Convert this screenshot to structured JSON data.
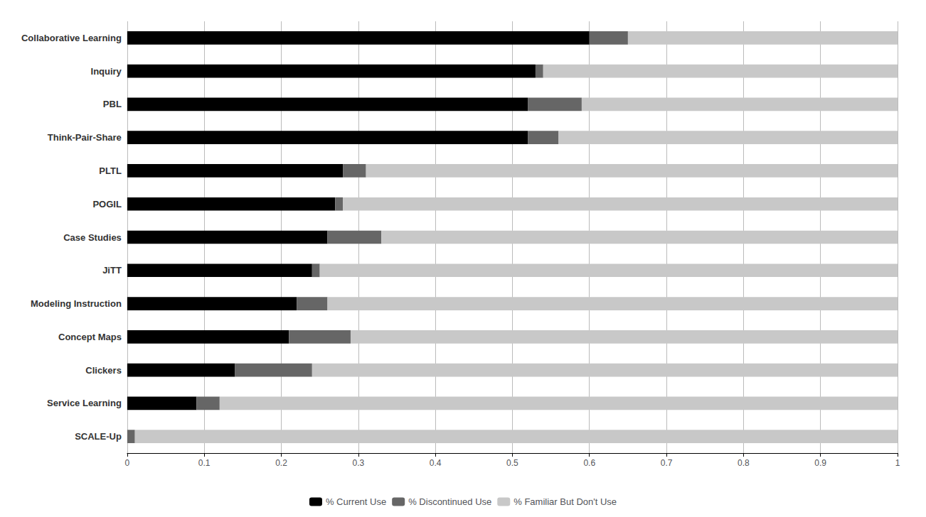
{
  "chart_data": {
    "type": "bar",
    "orientation": "horizontal",
    "stacked": true,
    "categories": [
      "Collaborative Learning",
      "Inquiry",
      "PBL",
      "Think-Pair-Share",
      "PLTL",
      "POGIL",
      "Case Studies",
      "JiTT",
      "Modeling Instruction",
      "Concept Maps",
      "Clickers",
      "Service Learning",
      "SCALE-Up"
    ],
    "series": [
      {
        "name": "% Current Use",
        "color": "#000000",
        "values": [
          0.6,
          0.53,
          0.52,
          0.52,
          0.28,
          0.27,
          0.26,
          0.24,
          0.22,
          0.21,
          0.14,
          0.09,
          0.0
        ]
      },
      {
        "name": "% Discontinued Use",
        "color": "#666666",
        "values": [
          0.05,
          0.01,
          0.07,
          0.04,
          0.03,
          0.01,
          0.07,
          0.01,
          0.04,
          0.08,
          0.1,
          0.03,
          0.01
        ]
      },
      {
        "name": "% Familiar But Don't Use",
        "color": "#c8c8c8",
        "values": [
          0.35,
          0.46,
          0.41,
          0.44,
          0.69,
          0.72,
          0.67,
          0.75,
          0.74,
          0.71,
          0.76,
          0.88,
          0.99
        ]
      }
    ],
    "xlim": [
      0,
      1.0
    ],
    "xticks": [
      0,
      0.1,
      0.2,
      0.3,
      0.4,
      0.5,
      0.6,
      0.7,
      0.8,
      0.9,
      1
    ],
    "grid": true,
    "legend": "bottom"
  }
}
